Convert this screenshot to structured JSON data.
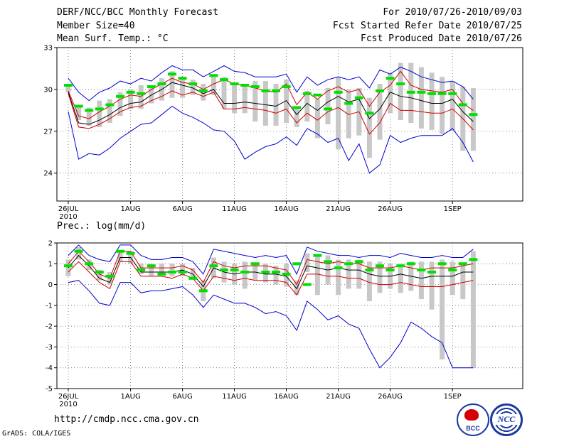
{
  "header": {
    "title": "DERF/NCC/BCC Monthly Forecast",
    "member": "Member Size=40",
    "variable": "Mean Surf. Temp.: °C",
    "period": "For 2010/07/26-2010/09/03",
    "started": "Fcst Started Refer Date 2010/07/25",
    "produced": "Fcst Produced Date 2010/07/26"
  },
  "footer": {
    "url": "http://cmdp.ncc.cma.gov.cn",
    "grads": "GrADS: COLA/IGES"
  },
  "logos": {
    "bcc": "BCC",
    "ncc": "NCC"
  },
  "colors": {
    "obs": "#00e000",
    "box": "#c8c8c8",
    "mean": "#000000",
    "std": "#d00000",
    "ext": "#0000d0"
  },
  "chart_data": [
    {
      "type": "line",
      "title": "Mean Surf. Temp.: °C",
      "xlabels": [
        "26JUL",
        "1AUG",
        "6AUG",
        "11AUG",
        "16AUG",
        "21AUG",
        "26AUG",
        "1SEP"
      ],
      "xlabel_days": [
        0,
        6,
        11,
        16,
        21,
        26,
        31,
        37
      ],
      "year_label": "2010",
      "ylim": [
        22,
        33
      ],
      "yticks": [
        24,
        27,
        30,
        33
      ],
      "series": [
        {
          "name": "max",
          "values": [
            30.8,
            29.8,
            29.2,
            29.8,
            30.1,
            30.6,
            30.4,
            30.8,
            30.6,
            31.2,
            31.7,
            31.4,
            31.4,
            30.9,
            31.3,
            31.7,
            31.3,
            31.2,
            30.9,
            30.9,
            30.9,
            31.1,
            29.8,
            30.9,
            30.3,
            30.7,
            30.9,
            30.7,
            30.9,
            30.1,
            31.4,
            31.1,
            31.6,
            31.3,
            30.9,
            30.7,
            30.5,
            30.6,
            30.2,
            29.3
          ]
        },
        {
          "name": "mean+std",
          "values": [
            29.9,
            28.1,
            27.9,
            28.4,
            28.8,
            29.3,
            29.6,
            29.5,
            30.0,
            30.4,
            30.8,
            30.5,
            30.4,
            30.0,
            30.4,
            30.7,
            30.4,
            30.3,
            30.1,
            29.9,
            29.8,
            30.4,
            28.9,
            29.8,
            29.3,
            29.9,
            30.2,
            29.8,
            30.0,
            28.8,
            29.8,
            30.3,
            31.3,
            30.3,
            30.0,
            29.9,
            29.8,
            30.0,
            29.0,
            28.5
          ]
        },
        {
          "name": "mean",
          "values": [
            29.8,
            27.6,
            27.5,
            27.8,
            28.2,
            28.7,
            29.0,
            29.1,
            29.6,
            30.0,
            30.5,
            30.3,
            30.1,
            29.7,
            30.0,
            29.0,
            29.0,
            29.1,
            29.0,
            28.9,
            28.8,
            29.2,
            28.2,
            29.0,
            28.5,
            29.1,
            29.5,
            29.1,
            29.3,
            27.9,
            28.6,
            29.8,
            29.5,
            29.4,
            29.2,
            29.0,
            29.0,
            29.3,
            28.4,
            27.7
          ]
        },
        {
          "name": "mean-std",
          "values": [
            29.7,
            27.3,
            27.2,
            27.5,
            27.9,
            28.4,
            28.7,
            28.8,
            29.2,
            29.5,
            29.9,
            29.6,
            29.8,
            29.5,
            29.8,
            28.6,
            28.6,
            28.7,
            28.6,
            28.5,
            28.3,
            28.6,
            27.6,
            28.3,
            27.8,
            28.4,
            28.7,
            28.2,
            28.4,
            26.8,
            27.6,
            29.0,
            28.5,
            28.5,
            28.4,
            28.3,
            28.3,
            28.6,
            27.9,
            27.1
          ]
        },
        {
          "name": "min",
          "values": [
            28.4,
            25.0,
            25.4,
            25.3,
            25.8,
            26.5,
            27.0,
            27.5,
            27.6,
            28.2,
            28.8,
            28.3,
            28.0,
            27.6,
            27.1,
            27.0,
            26.3,
            25.0,
            25.5,
            25.9,
            26.1,
            26.6,
            26.0,
            27.2,
            26.8,
            26.2,
            26.5,
            24.9,
            26.1,
            24.0,
            24.6,
            26.7,
            26.2,
            26.5,
            26.7,
            26.7,
            26.7,
            27.2,
            26.2,
            24.8
          ]
        }
      ],
      "boxes": {
        "lo": [
          29.8,
          27.8,
          27.4,
          27.3,
          27.6,
          28.1,
          28.6,
          28.6,
          29.0,
          29.2,
          29.4,
          29.4,
          29.6,
          29.2,
          29.6,
          28.6,
          28.3,
          28.3,
          27.7,
          27.4,
          27.4,
          27.6,
          27.3,
          27.7,
          26.5,
          27.5,
          25.7,
          26.5,
          26.7,
          25.1,
          26.4,
          28.3,
          27.8,
          27.6,
          27.2,
          27.1,
          26.8,
          27.0,
          25.6,
          25.6
        ],
        "hi": [
          30.3,
          28.9,
          28.7,
          29.2,
          29.3,
          29.8,
          30.0,
          30.3,
          30.2,
          30.8,
          31.3,
          30.9,
          30.7,
          30.4,
          30.9,
          30.9,
          30.3,
          30.4,
          30.6,
          30.6,
          30.4,
          30.7,
          28.7,
          29.9,
          29.3,
          30.1,
          30.9,
          30.0,
          30.1,
          29.4,
          30.4,
          31.2,
          31.9,
          31.9,
          31.6,
          31.2,
          30.9,
          30.6,
          30.2,
          30.1
        ]
      },
      "observed": [
        30.3,
        28.8,
        28.5,
        28.6,
        28.9,
        29.5,
        29.8,
        29.7,
        30.2,
        30.4,
        31.1,
        30.8,
        30.4,
        29.9,
        31.0,
        30.7,
        30.4,
        30.3,
        30.2,
        29.9,
        29.9,
        30.2,
        28.7,
        29.7,
        29.6,
        28.6,
        29.8,
        29.0,
        29.4,
        28.3,
        29.9,
        30.8,
        30.4,
        29.8,
        29.8,
        29.7,
        29.7,
        29.7,
        28.9,
        28.2
      ]
    },
    {
      "type": "line",
      "title": "Prec.: log(mm/d)",
      "xlabels": [
        "26JUL",
        "1AUG",
        "6AUG",
        "11AUG",
        "16AUG",
        "21AUG",
        "26AUG",
        "1SEP"
      ],
      "xlabel_days": [
        0,
        6,
        11,
        16,
        21,
        26,
        31,
        37
      ],
      "year_label": "2010",
      "ylim": [
        -5,
        2
      ],
      "yticks": [
        -5,
        -4,
        -3,
        -2,
        -1,
        0,
        1,
        2
      ],
      "series": [
        {
          "name": "max",
          "values": [
            1.4,
            1.9,
            1.4,
            1.2,
            1.1,
            1.9,
            1.9,
            1.4,
            1.2,
            1.2,
            1.3,
            1.3,
            1.1,
            0.5,
            1.7,
            1.6,
            1.5,
            1.4,
            1.3,
            1.4,
            1.3,
            1.4,
            0.5,
            1.8,
            1.6,
            1.5,
            1.4,
            1.4,
            1.3,
            1.4,
            1.4,
            1.3,
            1.5,
            1.4,
            1.3,
            1.3,
            1.4,
            1.3,
            1.3,
            1.7
          ]
        },
        {
          "name": "mean+std",
          "values": [
            1.0,
            1.6,
            1.1,
            0.5,
            0.3,
            1.6,
            1.6,
            0.8,
            0.8,
            0.8,
            0.8,
            0.9,
            0.7,
            0.1,
            1.1,
            0.9,
            0.8,
            0.9,
            0.9,
            0.9,
            0.8,
            0.7,
            0.0,
            1.2,
            1.1,
            1.0,
            1.1,
            1.0,
            1.0,
            0.8,
            0.8,
            0.8,
            0.9,
            0.8,
            0.7,
            0.8,
            0.8,
            0.8,
            0.9,
            1.0
          ]
        },
        {
          "name": "mean",
          "values": [
            0.8,
            1.4,
            0.9,
            0.3,
            0.1,
            1.3,
            1.3,
            0.6,
            0.6,
            0.6,
            0.6,
            0.7,
            0.5,
            -0.1,
            0.8,
            0.6,
            0.5,
            0.6,
            0.6,
            0.5,
            0.5,
            0.4,
            -0.2,
            0.9,
            0.8,
            0.7,
            0.8,
            0.7,
            0.7,
            0.5,
            0.4,
            0.4,
            0.5,
            0.4,
            0.3,
            0.4,
            0.4,
            0.4,
            0.6,
            0.6
          ]
        },
        {
          "name": "mean-std",
          "values": [
            0.6,
            1.1,
            0.6,
            0.1,
            -0.2,
            1.1,
            1.1,
            0.4,
            0.4,
            0.4,
            0.3,
            0.5,
            0.3,
            -0.3,
            0.4,
            0.3,
            0.2,
            0.3,
            0.2,
            0.2,
            0.2,
            0.1,
            -0.5,
            0.5,
            0.5,
            0.4,
            0.4,
            0.3,
            0.3,
            0.1,
            0.0,
            0.0,
            0.1,
            0.0,
            -0.1,
            -0.1,
            -0.1,
            0.0,
            0.1,
            0.2
          ]
        },
        {
          "name": "min",
          "values": [
            0.1,
            0.2,
            -0.3,
            -0.9,
            -1.0,
            0.1,
            0.1,
            -0.4,
            -0.3,
            -0.3,
            -0.2,
            -0.1,
            -0.5,
            -1.1,
            -0.5,
            -0.7,
            -0.9,
            -0.9,
            -1.1,
            -1.4,
            -1.3,
            -1.5,
            -2.2,
            -0.8,
            -1.2,
            -1.7,
            -1.5,
            -1.9,
            -2.1,
            -3.1,
            -4.0,
            -3.5,
            -2.8,
            -1.8,
            -2.1,
            -2.5,
            -2.8,
            -4.0,
            -4.0,
            -4.0
          ]
        }
      ],
      "boxes": {
        "lo": [
          0.4,
          1.2,
          0.7,
          0.2,
          0.0,
          1.1,
          1.0,
          0.5,
          0.4,
          0.5,
          0.4,
          0.4,
          0.3,
          -0.8,
          0.3,
          0.1,
          0.0,
          -0.2,
          0.2,
          0.1,
          0.0,
          -0.1,
          -0.5,
          0.6,
          -0.5,
          0.0,
          -0.5,
          -0.2,
          -0.2,
          -0.8,
          -0.4,
          -0.2,
          -0.4,
          -0.3,
          -0.7,
          -1.2,
          -3.6,
          -0.5,
          -0.7,
          -4.0
        ],
        "hi": [
          1.2,
          1.8,
          1.2,
          0.7,
          0.6,
          1.6,
          1.6,
          1.0,
          1.0,
          1.0,
          1.0,
          1.0,
          0.8,
          0.2,
          1.3,
          1.1,
          1.0,
          1.1,
          1.0,
          1.0,
          0.9,
          1.0,
          0.2,
          1.5,
          1.4,
          1.4,
          1.2,
          1.2,
          1.2,
          1.1,
          1.1,
          1.0,
          1.0,
          1.1,
          1.1,
          1.1,
          1.2,
          1.1,
          1.0,
          1.6
        ]
      },
      "observed": [
        0.9,
        1.6,
        1.0,
        0.6,
        0.4,
        1.6,
        1.5,
        0.7,
        0.9,
        0.5,
        0.6,
        0.6,
        0.3,
        -0.3,
        0.9,
        0.7,
        0.7,
        0.6,
        1.0,
        0.6,
        0.6,
        0.5,
        1.0,
        0.0,
        1.4,
        1.1,
        0.8,
        1.0,
        1.1,
        0.7,
        0.9,
        0.7,
        0.9,
        1.0,
        0.7,
        0.6,
        1.0,
        0.7,
        1.0,
        1.2
      ]
    }
  ]
}
